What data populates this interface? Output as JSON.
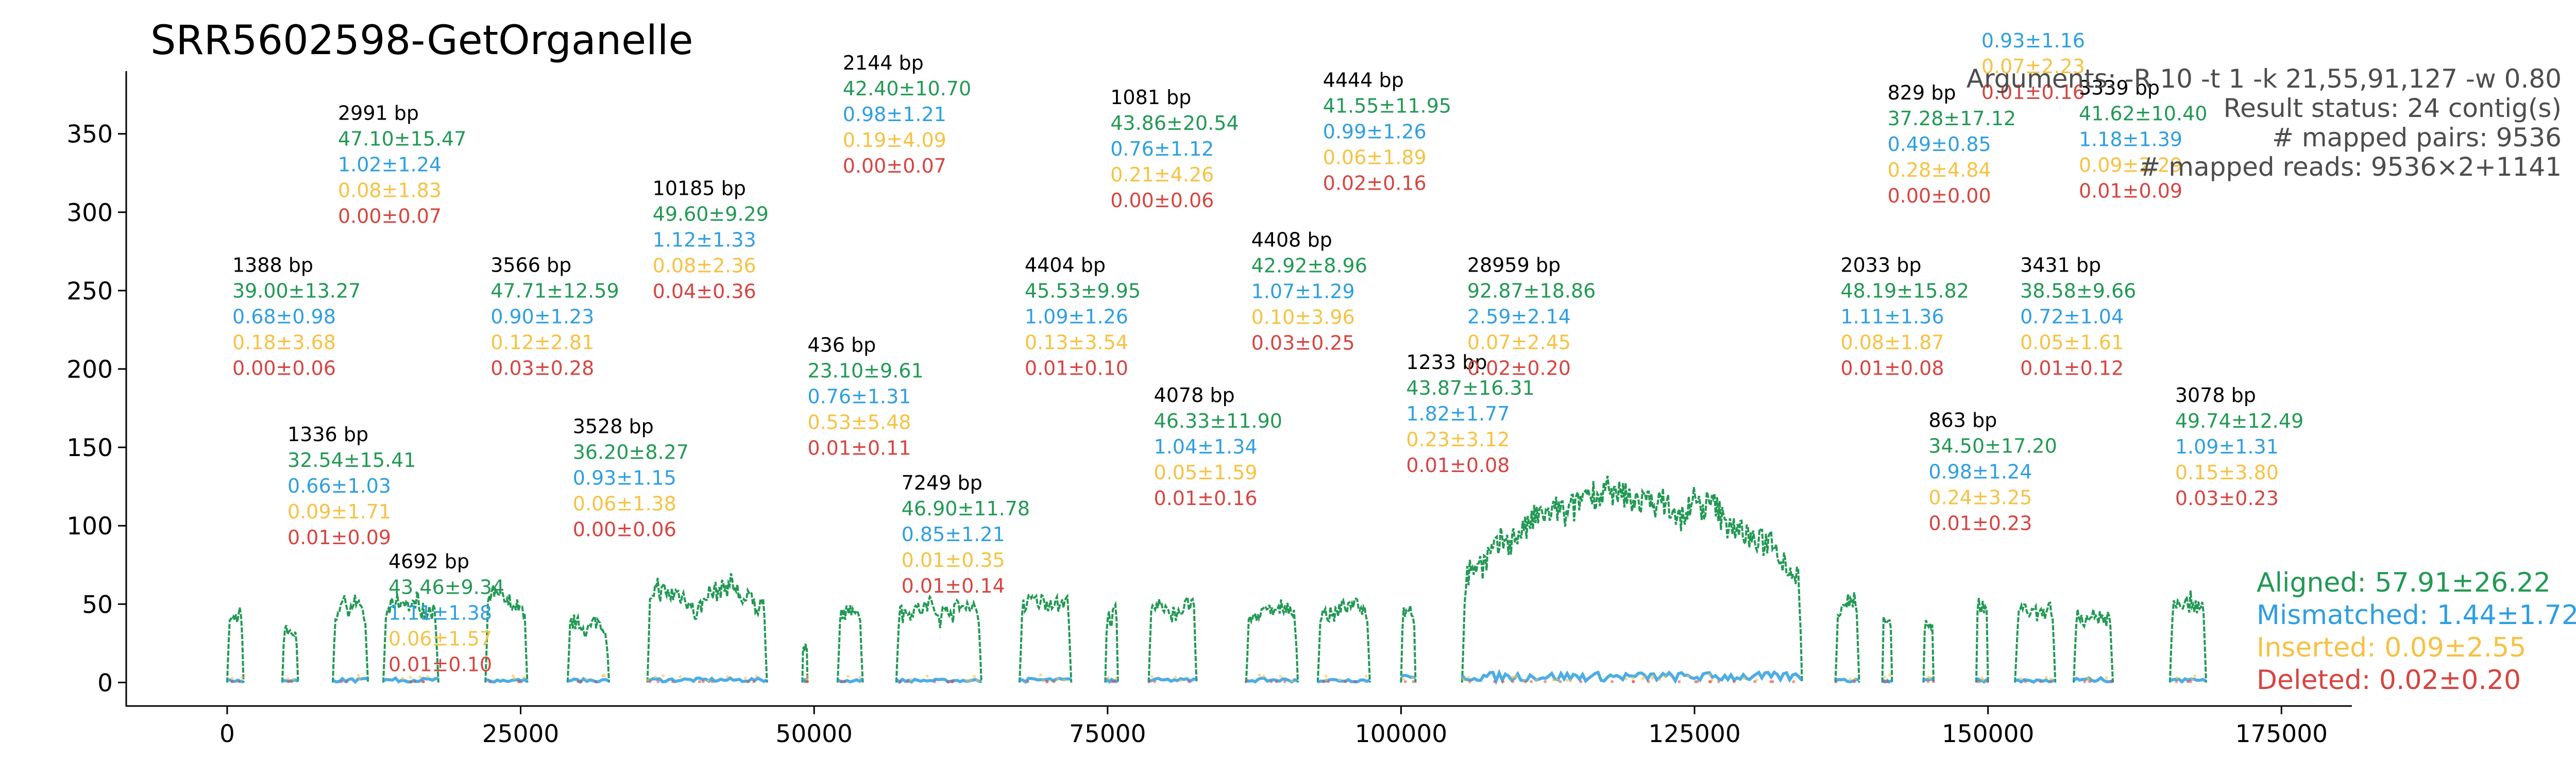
{
  "chart_data": {
    "type": "line",
    "title": "SRR5602598-GetOrganelle",
    "xlabel": "",
    "ylabel": "",
    "xlim": [
      -8600,
      181000
    ],
    "ylim": [
      -15,
      390
    ],
    "x_ticks": [
      0,
      25000,
      50000,
      75000,
      100000,
      125000,
      150000,
      175000
    ],
    "y_ticks": [
      0,
      50,
      100,
      150,
      200,
      250,
      300,
      350
    ],
    "grid": false,
    "colors": {
      "aligned": "#229954",
      "mismatched": "#2e9fe0",
      "inserted": "#f6c243",
      "deleted": "#d64541",
      "label": "#000000",
      "info": "#4d4d4d"
    },
    "info_text": [
      "Arguments: -R 10 -t 1 -k 21,55,91,127 -w 0.80",
      "Result status: 24 contig(s)",
      "# mapped pairs: 9536",
      "# mapped reads: 9536×2+1141"
    ],
    "legend": [
      {
        "key": "aligned",
        "text": "Aligned: 57.91±26.22"
      },
      {
        "key": "mismatched",
        "text": "Mismatched: 1.44±1.72"
      },
      {
        "key": "inserted",
        "text": "Inserted: 0.09±2.55"
      },
      {
        "key": "deleted",
        "text": "Deleted: 0.02±0.20"
      }
    ],
    "contigs": [
      {
        "start": 0,
        "end": 1388,
        "label_y": 262,
        "bp": "1388 bp",
        "aligned": "39.00±13.27",
        "mismatched": "0.68±0.98",
        "inserted": "0.18±3.68",
        "deleted": "0.00±0.06"
      },
      {
        "start": 4700,
        "end": 6036,
        "label_y": 154,
        "bp": "1336 bp",
        "aligned": "32.54±15.41",
        "mismatched": "0.66±1.03",
        "inserted": "0.09±1.71",
        "deleted": "0.01±0.09"
      },
      {
        "start": 9000,
        "end": 11991,
        "label_y": 359,
        "bp": "2991 bp",
        "aligned": "47.10±15.47",
        "mismatched": "1.02±1.24",
        "inserted": "0.08±1.83",
        "deleted": "0.00±0.07"
      },
      {
        "start": 13300,
        "end": 17992,
        "label_y": 73,
        "bp": "4692 bp",
        "aligned": "43.46±9.34",
        "mismatched": "1.11±1.38",
        "inserted": "0.06±1.57",
        "deleted": "0.01±0.10"
      },
      {
        "start": 22000,
        "end": 25566,
        "label_y": 262,
        "bp": "3566 bp",
        "aligned": "47.71±12.59",
        "mismatched": "0.90±1.23",
        "inserted": "0.12±2.81",
        "deleted": "0.03±0.28"
      },
      {
        "start": 29000,
        "end": 32528,
        "label_y": 159,
        "bp": "3528 bp",
        "aligned": "36.20±8.27",
        "mismatched": "0.93±1.15",
        "inserted": "0.06±1.38",
        "deleted": "0.00±0.06"
      },
      {
        "start": 35800,
        "end": 45985,
        "label_y": 311,
        "bp": "10185 bp",
        "aligned": "49.60±9.29",
        "mismatched": "1.12±1.33",
        "inserted": "0.08±2.36",
        "deleted": "0.04±0.36"
      },
      {
        "start": 49000,
        "end": 49436,
        "label_y": 211,
        "bp": "436 bp",
        "aligned": "23.10±9.61",
        "mismatched": "0.76±1.31",
        "inserted": "0.53±5.48",
        "deleted": "0.01±0.11"
      },
      {
        "start": 52000,
        "end": 54144,
        "label_y": 391,
        "bp": "2144 bp",
        "aligned": "42.40±10.70",
        "mismatched": "0.98±1.21",
        "inserted": "0.19±4.09",
        "deleted": "0.00±0.07"
      },
      {
        "start": 57000,
        "end": 64249,
        "label_y": 123,
        "bp": "7249 bp",
        "aligned": "46.90±11.78",
        "mismatched": "0.85±1.21",
        "inserted": "0.01±0.35",
        "deleted": "0.01±0.14"
      },
      {
        "start": 67500,
        "end": 71904,
        "label_y": 262,
        "bp": "4404 bp",
        "aligned": "45.53±9.95",
        "mismatched": "1.09±1.26",
        "inserted": "0.13±3.54",
        "deleted": "0.01±0.10"
      },
      {
        "start": 74800,
        "end": 75881,
        "label_y": 369,
        "bp": "1081 bp",
        "aligned": "43.86±20.54",
        "mismatched": "0.76±1.12",
        "inserted": "0.21±4.26",
        "deleted": "0.00±0.06"
      },
      {
        "start": 78500,
        "end": 82578,
        "label_y": 179,
        "bp": "4078 bp",
        "aligned": "46.33±11.90",
        "mismatched": "1.04±1.34",
        "inserted": "0.05±1.59",
        "deleted": "0.01±0.16"
      },
      {
        "start": 86800,
        "end": 91208,
        "label_y": 278,
        "bp": "4408 bp",
        "aligned": "42.92±8.96",
        "mismatched": "1.07±1.29",
        "inserted": "0.10±3.96",
        "deleted": "0.03±0.25"
      },
      {
        "start": 92900,
        "end": 97344,
        "label_y": 380,
        "bp": "4444 bp",
        "aligned": "41.55±11.95",
        "mismatched": "0.99±1.26",
        "inserted": "0.06±1.89",
        "deleted": "0.02±0.16"
      },
      {
        "start": 100000,
        "end": 101233,
        "label_y": 200,
        "bp": "1233 bp",
        "aligned": "43.87±16.31",
        "mismatched": "1.82±1.77",
        "inserted": "0.23±3.12",
        "deleted": "0.01±0.08"
      },
      {
        "start": 105200,
        "end": 134159,
        "label_y": 262,
        "bp": "28959 bp",
        "aligned": "92.87±18.86",
        "mismatched": "2.59±2.14",
        "inserted": "0.07±2.45",
        "deleted": "0.02±0.20"
      },
      {
        "start": 137000,
        "end": 139033,
        "label_y": 262,
        "bp": "2033 bp",
        "aligned": "48.19±15.82",
        "mismatched": "1.11±1.36",
        "inserted": "0.08±1.87",
        "deleted": "0.01±0.08"
      },
      {
        "start": 141000,
        "end": 141829,
        "label_y": 372,
        "bp": "829 bp",
        "aligned": "37.28±17.12",
        "mismatched": "0.49±0.85",
        "inserted": "0.28±4.84",
        "deleted": "0.00±0.00"
      },
      {
        "start": 144500,
        "end": 145363,
        "label_y": 163,
        "bp": "863 bp",
        "aligned": "34.50±17.20",
        "mismatched": "0.98±1.24",
        "inserted": "0.24±3.25",
        "deleted": "0.01±0.23"
      },
      {
        "start": 149000,
        "end": 150000,
        "label_y": 438,
        "bp": "",
        "aligned": "",
        "mismatched": "0.93±1.16",
        "inserted": "0.07±2.23",
        "deleted": "0.01±0.16"
      },
      {
        "start": 152300,
        "end": 155731,
        "label_y": 262,
        "bp": "3431 bp",
        "aligned": "38.58±9.66",
        "mismatched": "0.72±1.04",
        "inserted": "0.05±1.61",
        "deleted": "0.01±0.12"
      },
      {
        "start": 157300,
        "end": 160639,
        "label_y": 375,
        "bp": "3339 bp",
        "aligned": "41.62±10.40",
        "mismatched": "1.18±1.39",
        "inserted": "0.09±2.29",
        "deleted": "0.01±0.09"
      },
      {
        "start": 165500,
        "end": 168578,
        "label_y": 179,
        "bp": "3078 bp",
        "aligned": "49.74±12.49",
        "mismatched": "1.09±1.31",
        "inserted": "0.15±3.80",
        "deleted": "0.03±0.23"
      }
    ]
  }
}
